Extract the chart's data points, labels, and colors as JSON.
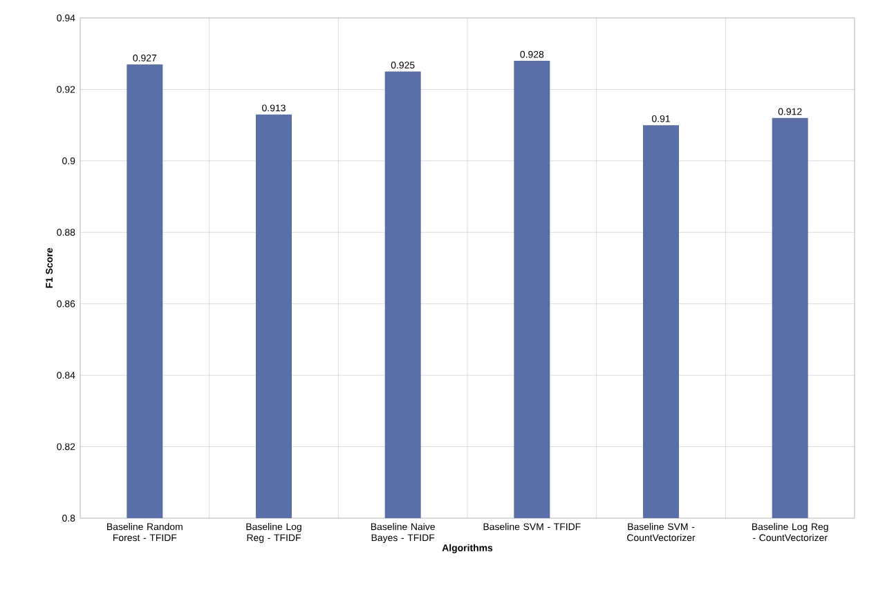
{
  "chart_data": {
    "type": "bar",
    "xlabel": "Algorithms",
    "ylabel": "F1 Score",
    "categories": [
      "Baseline Random Forest - TFIDF",
      "Baseline Log Reg - TFIDF",
      "Baseline Naive Bayes - TFIDF",
      "Baseline SVM - TFIDF",
      "Baseline SVM - CountVectorizer",
      "Baseline Log Reg - CountVectorizer"
    ],
    "values": [
      0.927,
      0.913,
      0.925,
      0.928,
      0.91,
      0.912
    ],
    "color": "#5a6ea8",
    "ylim": [
      0.8,
      0.94
    ],
    "yticks": [
      0.8,
      0.82,
      0.84,
      0.86,
      0.88,
      0.9,
      0.92,
      0.94
    ],
    "grid": true,
    "data_labels": true
  }
}
